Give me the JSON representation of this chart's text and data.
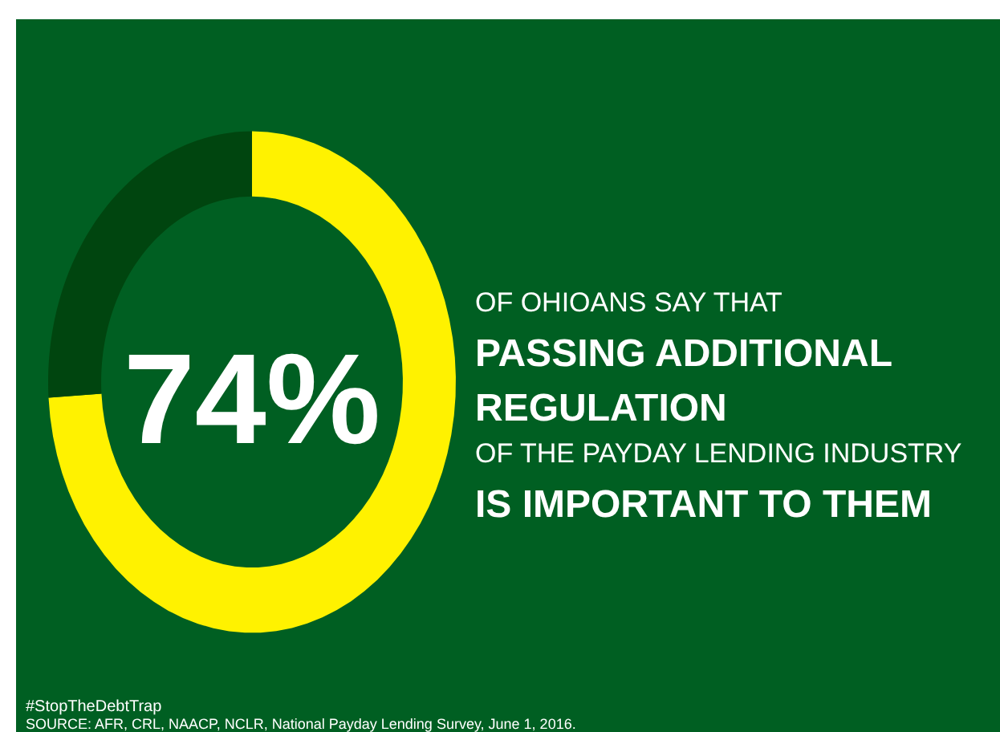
{
  "chart_data": {
    "type": "donut",
    "title": "OF OHIOANS SAY THAT\nPASSING ADDITIONAL\nREGULATION\nOF THE PAYDAY LENDING INDUSTRY\nIS IMPORTANT TO THEM",
    "categories": [
      null,
      null
    ],
    "values": [
      74,
      26
    ],
    "colors": [
      "#fff200",
      "#00450f"
    ],
    "value_labels": [
      "74%",
      null
    ],
    "annotations": [
      "#StopTheDebtTrap",
      "SOURCE: AFR, CRL, NAACP, NCLR, National Payday Lending Survey, June 1, 2016."
    ]
  }
}
